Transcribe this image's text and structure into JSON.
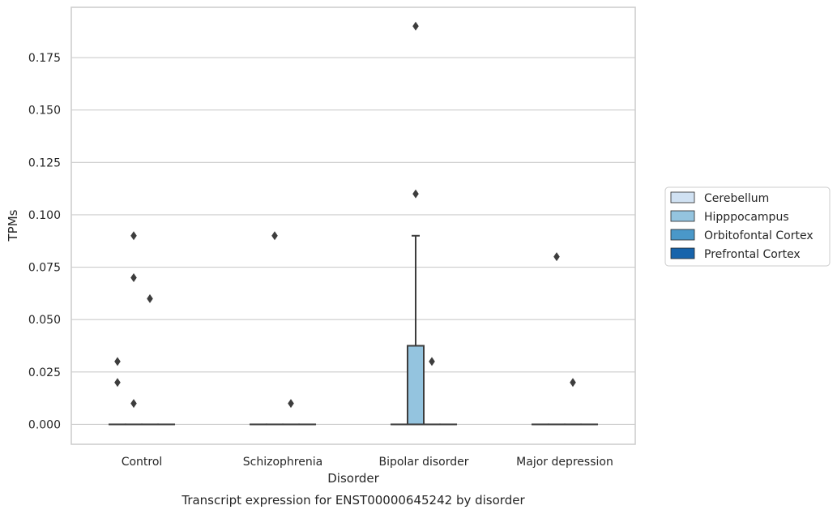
{
  "caption": "Transcript expression for ENST00000645242 by disorder",
  "chart_data": {
    "type": "box",
    "title": "",
    "xlabel": "Disorder",
    "ylabel": "TPMs",
    "ylim": [
      -0.0095,
      0.199
    ],
    "yticks": [
      0.0,
      0.025,
      0.05,
      0.075,
      0.1,
      0.125,
      0.15,
      0.175
    ],
    "ytick_labels": [
      "0.000",
      "0.025",
      "0.050",
      "0.075",
      "0.100",
      "0.125",
      "0.150",
      "0.175"
    ],
    "grid": "horizontal",
    "legend_position": "outside-right",
    "categories": [
      "Control",
      "Schizophrenia",
      "Bipolar disorder",
      "Major depression"
    ],
    "series": [
      {
        "name": "Cerebellum",
        "color": "#d0e1f2",
        "boxes": [
          {
            "q1": 0,
            "median": 0,
            "q3": 0,
            "whisker_low": 0,
            "whisker_high": 0,
            "outliers": [
              0.03,
              0.02
            ]
          },
          {
            "q1": 0,
            "median": 0,
            "q3": 0,
            "whisker_low": 0,
            "whisker_high": 0,
            "outliers": []
          },
          {
            "q1": 0,
            "median": 0,
            "q3": 0,
            "whisker_low": 0,
            "whisker_high": 0,
            "outliers": []
          },
          {
            "q1": 0,
            "median": 0,
            "q3": 0,
            "whisker_low": 0,
            "whisker_high": 0,
            "outliers": []
          }
        ]
      },
      {
        "name": "Hipppocampus",
        "color": "#94c4df",
        "boxes": [
          {
            "q1": 0,
            "median": 0,
            "q3": 0,
            "whisker_low": 0,
            "whisker_high": 0,
            "outliers": [
              0.09,
              0.07,
              0.01
            ]
          },
          {
            "q1": 0,
            "median": 0,
            "q3": 0,
            "whisker_low": 0,
            "whisker_high": 0,
            "outliers": [
              0.09
            ]
          },
          {
            "q1": 0,
            "median": 0,
            "q3": 0.0375,
            "whisker_low": 0,
            "whisker_high": 0.09,
            "outliers": [
              0.19,
              0.11
            ]
          },
          {
            "q1": 0,
            "median": 0,
            "q3": 0,
            "whisker_low": 0,
            "whisker_high": 0,
            "outliers": [
              0.08
            ]
          }
        ]
      },
      {
        "name": "Orbitofontal Cortex",
        "color": "#4a98c9",
        "boxes": [
          {
            "q1": 0,
            "median": 0,
            "q3": 0,
            "whisker_low": 0,
            "whisker_high": 0,
            "outliers": [
              0.06
            ]
          },
          {
            "q1": 0,
            "median": 0,
            "q3": 0,
            "whisker_low": 0,
            "whisker_high": 0,
            "outliers": [
              0.01
            ]
          },
          {
            "q1": 0,
            "median": 0,
            "q3": 0,
            "whisker_low": 0,
            "whisker_high": 0,
            "outliers": [
              0.03
            ]
          },
          {
            "q1": 0,
            "median": 0,
            "q3": 0,
            "whisker_low": 0,
            "whisker_high": 0,
            "outliers": [
              0.02
            ]
          }
        ]
      },
      {
        "name": "Prefrontal Cortex",
        "color": "#1764ab",
        "boxes": [
          {
            "q1": 0,
            "median": 0,
            "q3": 0,
            "whisker_low": 0,
            "whisker_high": 0,
            "outliers": []
          },
          {
            "q1": 0,
            "median": 0,
            "q3": 0,
            "whisker_low": 0,
            "whisker_high": 0,
            "outliers": []
          },
          {
            "q1": 0,
            "median": 0,
            "q3": 0,
            "whisker_low": 0,
            "whisker_high": 0,
            "outliers": []
          },
          {
            "q1": 0,
            "median": 0,
            "q3": 0,
            "whisker_low": 0,
            "whisker_high": 0,
            "outliers": []
          }
        ]
      }
    ]
  }
}
